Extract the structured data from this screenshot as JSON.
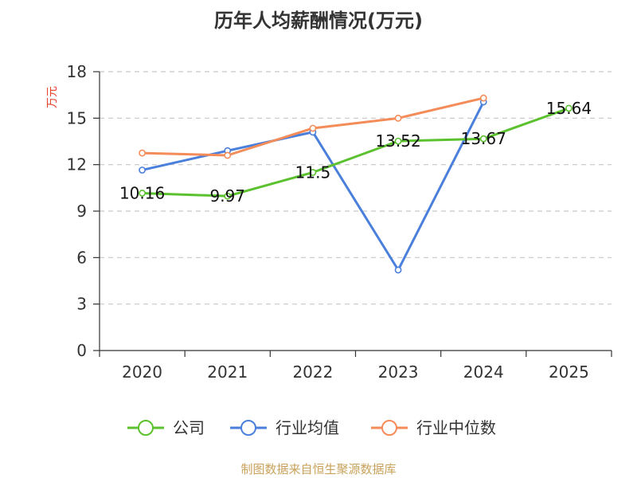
{
  "title": "历年人均薪酬情况(万元)",
  "source": "制图数据来自恒生聚源数据库",
  "chart_data": {
    "type": "line",
    "title": "历年人均薪酬情况(万元)",
    "ylabel": "万元",
    "xlabel": "",
    "categories": [
      "2020",
      "2021",
      "2022",
      "2023",
      "2024",
      "2025"
    ],
    "ylim": [
      0,
      18
    ],
    "yticks": [
      "0",
      "3",
      "6",
      "9",
      "12",
      "15",
      "18"
    ],
    "grid": true,
    "legend_position": "bottom",
    "series": [
      {
        "name": "公司",
        "color": "#5bc12f",
        "values": [
          10.16,
          9.97,
          11.5,
          13.52,
          13.67,
          15.64
        ],
        "labels": [
          "10.16",
          "9.97",
          "11.5",
          "13.52",
          "13.67",
          "15.64"
        ]
      },
      {
        "name": "行业均值",
        "color": "#4a7fdb",
        "values": [
          11.65,
          12.9,
          14.1,
          5.2,
          16.05,
          null
        ]
      },
      {
        "name": "行业中位数",
        "color": "#f48c5a",
        "values": [
          12.75,
          12.6,
          14.35,
          15.0,
          16.3,
          null
        ]
      }
    ]
  }
}
